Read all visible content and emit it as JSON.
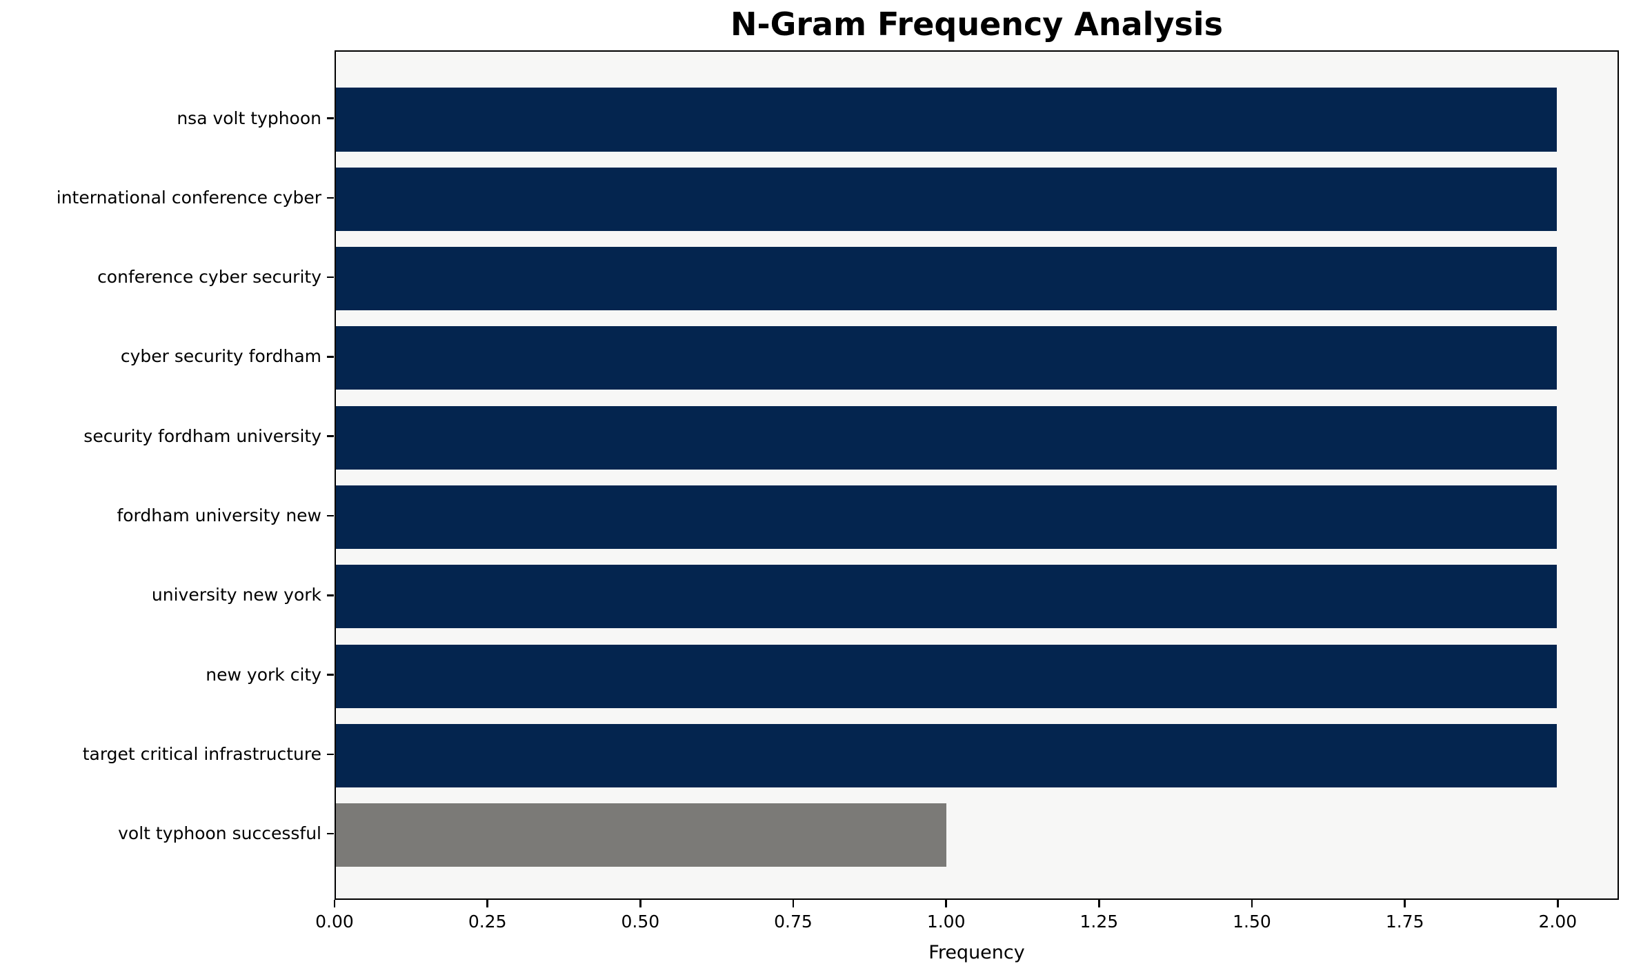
{
  "title": "N-Gram Frequency Analysis",
  "colors": {
    "bar_primary": "#04254f",
    "bar_muted": "#7b7a77",
    "plot_background": "#f7f7f6",
    "figure_background": "#ffffff",
    "spine": "#000000",
    "text": "#000000"
  },
  "chart_data": {
    "type": "bar",
    "orientation": "horizontal",
    "title": "N-Gram Frequency Analysis",
    "xlabel": "Frequency",
    "ylabel": "",
    "categories": [
      "nsa volt typhoon",
      "international conference cyber",
      "conference cyber security",
      "cyber security fordham",
      "security fordham university",
      "fordham university new",
      "university new york",
      "new york city",
      "target critical infrastructure",
      "volt typhoon successful"
    ],
    "values": [
      2,
      2,
      2,
      2,
      2,
      2,
      2,
      2,
      2,
      1
    ],
    "bar_colors": [
      "#04254f",
      "#04254f",
      "#04254f",
      "#04254f",
      "#04254f",
      "#04254f",
      "#04254f",
      "#04254f",
      "#04254f",
      "#7b7a77"
    ],
    "xlim": [
      0,
      2.1
    ],
    "xticks": [
      0.0,
      0.25,
      0.5,
      0.75,
      1.0,
      1.25,
      1.5,
      1.75,
      2.0
    ],
    "xtick_labels": [
      "0.00",
      "0.25",
      "0.50",
      "0.75",
      "1.00",
      "1.25",
      "1.50",
      "1.75",
      "2.00"
    ],
    "grid": false,
    "legend": null,
    "bar_relative_height": 0.8
  }
}
